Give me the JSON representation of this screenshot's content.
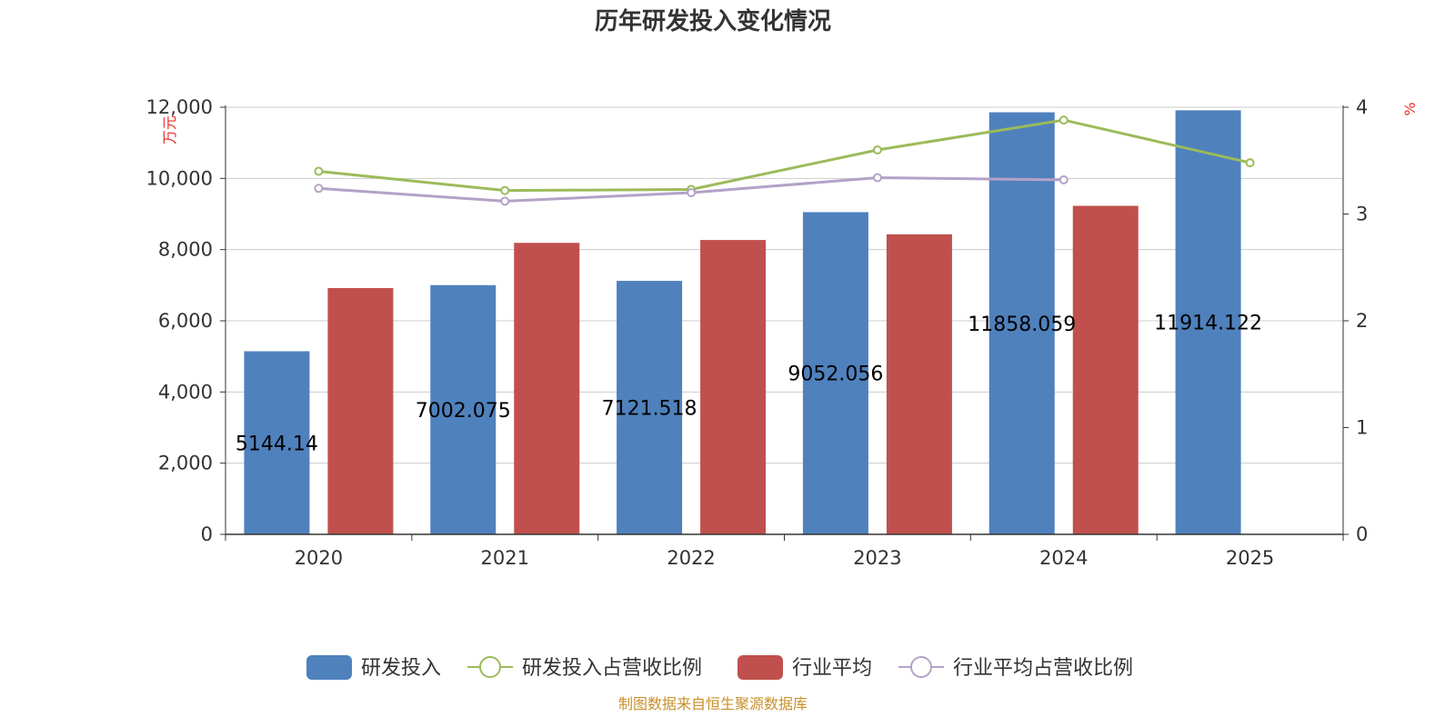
{
  "chart_data": {
    "type": "bar",
    "title": "历年研发投入变化情况",
    "categories": [
      "2020",
      "2021",
      "2022",
      "2023",
      "2024",
      "2025"
    ],
    "y_left": {
      "unit": "万元",
      "ylim": [
        0,
        12000
      ],
      "ticks": [
        "0",
        "2,000",
        "4,000",
        "6,000",
        "8,000",
        "10,000",
        "12,000"
      ],
      "tick_values": [
        0,
        2000,
        4000,
        6000,
        8000,
        10000,
        12000
      ]
    },
    "y_right": {
      "unit": "%",
      "ylim": [
        0,
        4
      ],
      "ticks": [
        "0",
        "1",
        "2",
        "3",
        "4"
      ],
      "tick_values": [
        0,
        1,
        2,
        3,
        4
      ]
    },
    "series": [
      {
        "name": "研发投入",
        "type": "bar",
        "axis": "left",
        "color": "#4f81bd",
        "values": [
          5144.14,
          7002.075,
          7121.518,
          9052.056,
          11858.059,
          11914.122
        ],
        "labels": [
          "5144.14",
          "7002.075",
          "7121.518",
          "9052.056",
          "11858.059",
          "11914.122"
        ]
      },
      {
        "name": "研发投入占营收比例",
        "type": "line",
        "axis": "right",
        "color": "#9bbb59",
        "values": [
          3.4,
          3.22,
          3.23,
          3.6,
          3.88,
          3.48
        ]
      },
      {
        "name": "行业平均",
        "type": "bar",
        "axis": "left",
        "color": "#c0504d",
        "values": [
          6920,
          8190,
          8270,
          8430,
          9230,
          null
        ]
      },
      {
        "name": "行业平均占营收比例",
        "type": "line",
        "axis": "right",
        "color": "#b3a2c7",
        "values": [
          3.24,
          3.12,
          3.2,
          3.34,
          3.32,
          null
        ]
      }
    ],
    "grid": true,
    "legend_position": "bottom"
  },
  "footer": {
    "source": "制图数据来自恒生聚源数据库",
    "source_color": "#c8902a"
  },
  "colors": {
    "unit_label": "#e8302a",
    "axis": "#333333",
    "grid": "#cccccc"
  }
}
